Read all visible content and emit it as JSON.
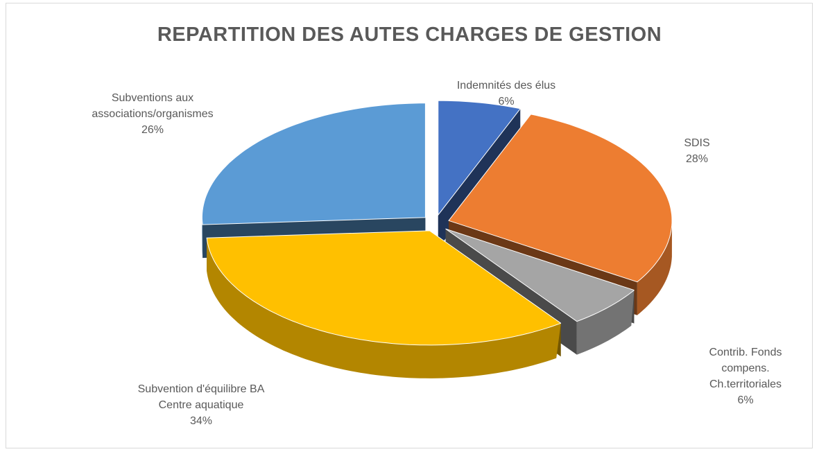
{
  "chart_data": {
    "type": "pie3d",
    "title": "REPARTITION DES AUTES CHARGES DE GESTION",
    "categories": [
      "Indemnités des élus",
      "SDIS",
      "Contrib. Fonds compens. Ch.territoriales",
      "Subvention d'équilibre BA Centre aquatique",
      "Subventions aux associations/organismes"
    ],
    "values": [
      6,
      28,
      6,
      34,
      26
    ],
    "value_labels": [
      "6%",
      "28%",
      "6%",
      "34%",
      "26%"
    ],
    "colors": [
      "#4472c4",
      "#ed7d31",
      "#a5a5a5",
      "#ffc000",
      "#5b9bd5"
    ]
  }
}
